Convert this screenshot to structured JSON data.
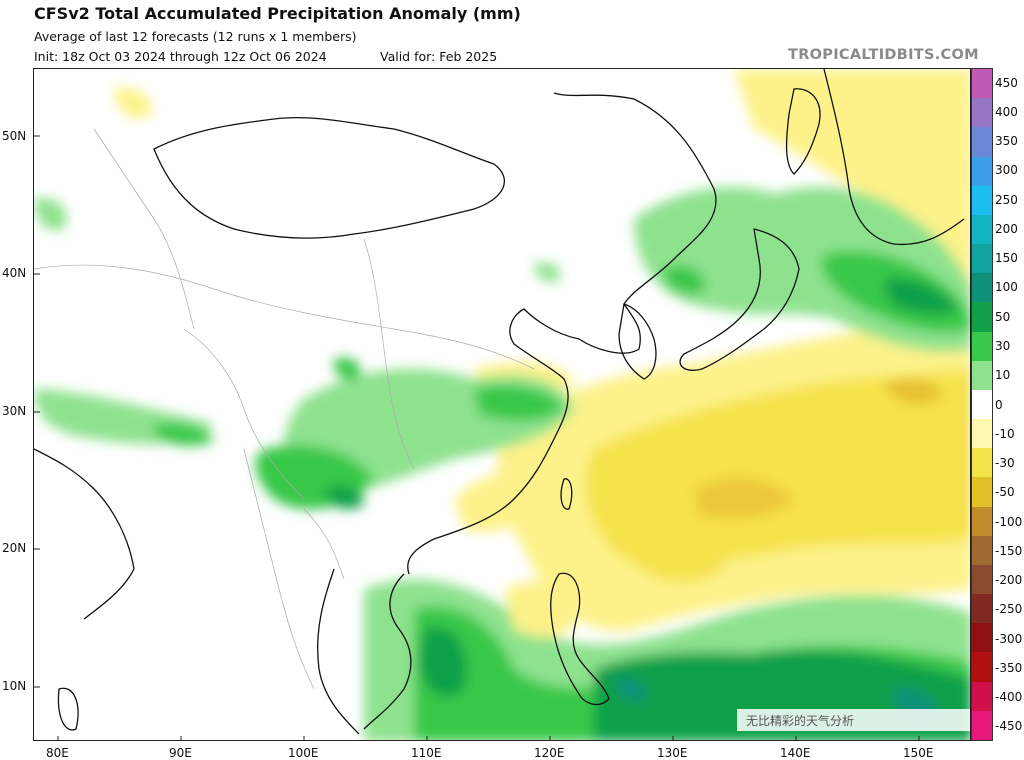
{
  "header": {
    "title": "CFSv2 Total Accumulated Precipitation Anomaly (mm)",
    "subtitle": "Average of last 12 forecasts (12 runs x 1 members)",
    "init": "Init: 18z Oct 03 2024 through 12z Oct 06 2024",
    "valid": "Valid for: Feb 2025",
    "site": "TROPICALTIDBITS.COM"
  },
  "map": {
    "lat_labels": [
      "50N",
      "40N",
      "30N",
      "20N",
      "10N"
    ],
    "lon_labels": [
      "80E",
      "90E",
      "100E",
      "110E",
      "120E",
      "130E",
      "140E",
      "150E"
    ]
  },
  "colorbar": {
    "labels": [
      "450",
      "400",
      "350",
      "300",
      "250",
      "200",
      "150",
      "100",
      "50",
      "30",
      "10",
      "0",
      "-10",
      "-30",
      "-50",
      "-100",
      "-150",
      "-200",
      "-250",
      "-300",
      "-350",
      "-400",
      "-450"
    ],
    "colors": [
      "#c05ab8",
      "#9674c6",
      "#6a86d6",
      "#3a9ee8",
      "#1cc0f0",
      "#14b4c4",
      "#12a3a0",
      "#0e907a",
      "#10a048",
      "#38c84a",
      "#8ee28e",
      "#ffffff",
      "#fdfab0",
      "#f4e44a",
      "#e2c02a",
      "#c08c2a",
      "#a06a30",
      "#8a4a30",
      "#822a22",
      "#8e1010",
      "#b01010",
      "#d0104a",
      "#e61a7a"
    ]
  },
  "overlay_text": "无比精彩的天气分析"
}
